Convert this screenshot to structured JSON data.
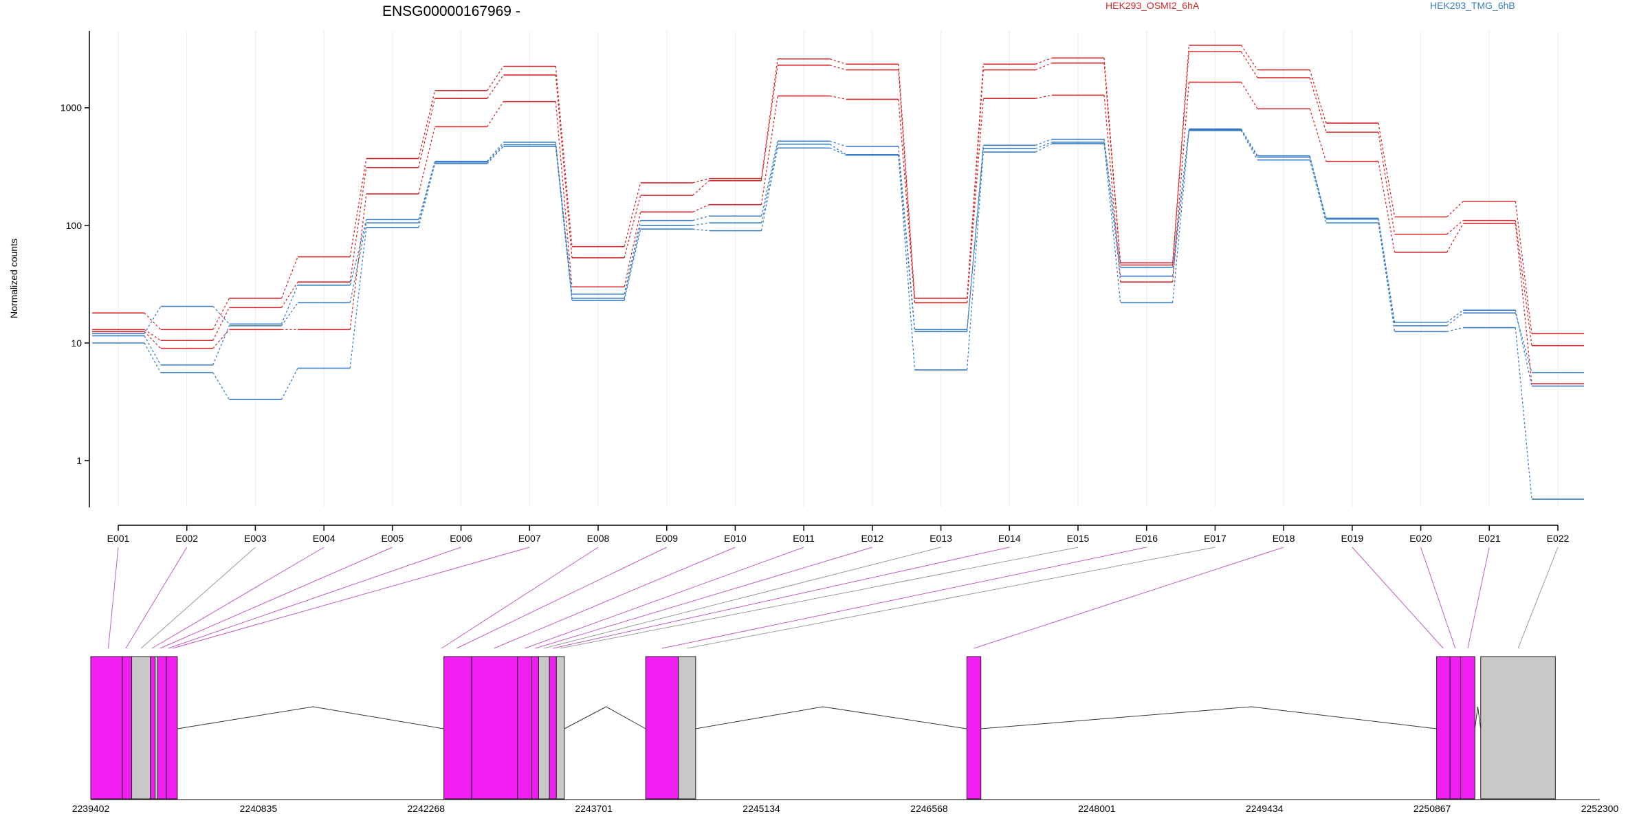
{
  "chart_data": {
    "type": "line",
    "title": "ENSG00000167969 -",
    "ylabel": "Normalized counts",
    "yscale": "log",
    "ylim": [
      0.4,
      4500
    ],
    "grid": true,
    "legend_placement": "top-right",
    "colors": {
      "osmi": "#d62728",
      "tmg": "#3b7dc4",
      "exon_highlight": "#f01ef0",
      "exon_plain": "#c8c8c8",
      "connector_highlight": "#c05cc0",
      "connector_plain": "#999999"
    },
    "yticks": [
      {
        "value": 1,
        "label": "1"
      },
      {
        "value": 10,
        "label": "10"
      },
      {
        "value": 100,
        "label": "100"
      },
      {
        "value": 1000,
        "label": "1000"
      }
    ],
    "categories": [
      "E001",
      "E002",
      "E003",
      "E004",
      "E005",
      "E006",
      "E007",
      "E008",
      "E009",
      "E010",
      "E011",
      "E012",
      "E013",
      "E014",
      "E015",
      "E016",
      "E017",
      "E018",
      "E019",
      "E020",
      "E021",
      "E022"
    ],
    "groups": [
      {
        "name": "HEK293_OSMI2_6hA",
        "color": "#d62728"
      },
      {
        "name": "HEK293_TMG_6hB",
        "color": "#3b7dc4"
      }
    ],
    "series": [
      {
        "group": 0,
        "values": [
          18,
          13,
          24,
          54,
          370,
          1400,
          2250,
          66,
          230,
          250,
          2600,
          2350,
          24,
          2350,
          2650,
          48,
          3400,
          2100,
          740,
          118,
          160,
          12
        ]
      },
      {
        "group": 0,
        "values": [
          13,
          10.5,
          20,
          33,
          310,
          1200,
          1900,
          53,
          180,
          240,
          2300,
          2100,
          22,
          2100,
          2400,
          46,
          3000,
          1800,
          620,
          84,
          110,
          9.5
        ]
      },
      {
        "group": 0,
        "values": [
          12.5,
          9,
          13,
          13,
          185,
          690,
          1130,
          30,
          130,
          150,
          1260,
          1180,
          22,
          1200,
          1280,
          33,
          1650,
          980,
          350,
          59,
          104,
          4.5
        ]
      },
      {
        "group": 1,
        "values": [
          12,
          20.5,
          14.5,
          31,
          112,
          350,
          510,
          26,
          110,
          120,
          520,
          470,
          13,
          480,
          540,
          44,
          660,
          390,
          115,
          15,
          19,
          4.3
        ]
      },
      {
        "group": 1,
        "values": [
          11.5,
          6.5,
          14,
          22,
          105,
          345,
          485,
          24,
          100,
          105,
          490,
          400,
          12.5,
          450,
          510,
          37,
          650,
          380,
          113,
          14,
          18,
          5.6
        ]
      },
      {
        "group": 1,
        "values": [
          10,
          5.6,
          3.3,
          6.1,
          96,
          335,
          470,
          23,
          93,
          90,
          455,
          395,
          5.9,
          420,
          495,
          22,
          640,
          360,
          105,
          12.5,
          13.5,
          0.47
        ]
      }
    ],
    "gene_model": {
      "coordinate_labels": [
        "2239402",
        "2240835",
        "2242268",
        "2243701",
        "2245134",
        "2246568",
        "2248001",
        "2249434",
        "2250867",
        "2252300"
      ],
      "range": [
        2239402,
        2252300
      ],
      "segments": [
        {
          "start": 2239402,
          "end": 2239672,
          "highlight": true
        },
        {
          "start": 2239672,
          "end": 2239752,
          "highlight": true
        },
        {
          "start": 2239752,
          "end": 2239912,
          "highlight": false
        },
        {
          "start": 2239912,
          "end": 2239952,
          "highlight": true
        },
        {
          "start": 2239952,
          "end": 2239975,
          "highlight": false
        },
        {
          "start": 2239975,
          "end": 2240048,
          "highlight": true
        },
        {
          "start": 2240048,
          "end": 2240142,
          "highlight": true
        },
        {
          "start": 2242420,
          "end": 2242658,
          "highlight": true
        },
        {
          "start": 2242658,
          "end": 2243050,
          "highlight": true
        },
        {
          "start": 2243050,
          "end": 2243172,
          "highlight": true
        },
        {
          "start": 2243172,
          "end": 2243230,
          "highlight": true
        },
        {
          "start": 2243230,
          "end": 2243322,
          "highlight": false
        },
        {
          "start": 2243322,
          "end": 2243382,
          "highlight": true
        },
        {
          "start": 2243382,
          "end": 2243450,
          "highlight": false
        },
        {
          "start": 2244145,
          "end": 2244425,
          "highlight": true
        },
        {
          "start": 2244425,
          "end": 2244572,
          "highlight": false
        },
        {
          "start": 2246890,
          "end": 2247010,
          "highlight": true
        },
        {
          "start": 2250905,
          "end": 2251020,
          "highlight": true
        },
        {
          "start": 2251020,
          "end": 2251110,
          "highlight": true
        },
        {
          "start": 2251110,
          "end": 2251232,
          "highlight": true
        },
        {
          "start": 2251282,
          "end": 2251920,
          "highlight": false
        }
      ],
      "introns": [
        {
          "from": 2240142,
          "to": 2242420,
          "peak": 2241302
        },
        {
          "from": 2243450,
          "to": 2244145,
          "peak": 2243807
        },
        {
          "from": 2244572,
          "to": 2246890,
          "peak": 2245660
        },
        {
          "from": 2247010,
          "to": 2250905,
          "peak": 2249320
        },
        {
          "from": 2251232,
          "to": 2251282,
          "peak": 2251257
        }
      ],
      "connectors": [
        {
          "exon": "E001",
          "coord": 2239552,
          "highlight": true
        },
        {
          "exon": "E002",
          "coord": 2239702,
          "highlight": true
        },
        {
          "exon": "E003",
          "coord": 2239832,
          "highlight": false
        },
        {
          "exon": "E004",
          "coord": 2239925,
          "highlight": true
        },
        {
          "exon": "E005",
          "coord": 2239995,
          "highlight": true
        },
        {
          "exon": "E006",
          "coord": 2240065,
          "highlight": true
        },
        {
          "exon": "E007",
          "coord": 2240102,
          "highlight": true
        },
        {
          "exon": "E008",
          "coord": 2242400,
          "highlight": true
        },
        {
          "exon": "E009",
          "coord": 2242530,
          "highlight": true
        },
        {
          "exon": "E010",
          "coord": 2242850,
          "highlight": true
        },
        {
          "exon": "E011",
          "coord": 2243112,
          "highlight": true
        },
        {
          "exon": "E012",
          "coord": 2243200,
          "highlight": true
        },
        {
          "exon": "E013",
          "coord": 2243276,
          "highlight": false
        },
        {
          "exon": "E014",
          "coord": 2243352,
          "highlight": true
        },
        {
          "exon": "E015",
          "coord": 2243416,
          "highlight": false
        },
        {
          "exon": "E016",
          "coord": 2244285,
          "highlight": true
        },
        {
          "exon": "E017",
          "coord": 2244498,
          "highlight": false
        },
        {
          "exon": "E018",
          "coord": 2246950,
          "highlight": true
        },
        {
          "exon": "E019",
          "coord": 2250962,
          "highlight": true
        },
        {
          "exon": "E020",
          "coord": 2251065,
          "highlight": true
        },
        {
          "exon": "E021",
          "coord": 2251171,
          "highlight": true
        },
        {
          "exon": "E022",
          "coord": 2251601,
          "highlight": false
        }
      ]
    }
  }
}
